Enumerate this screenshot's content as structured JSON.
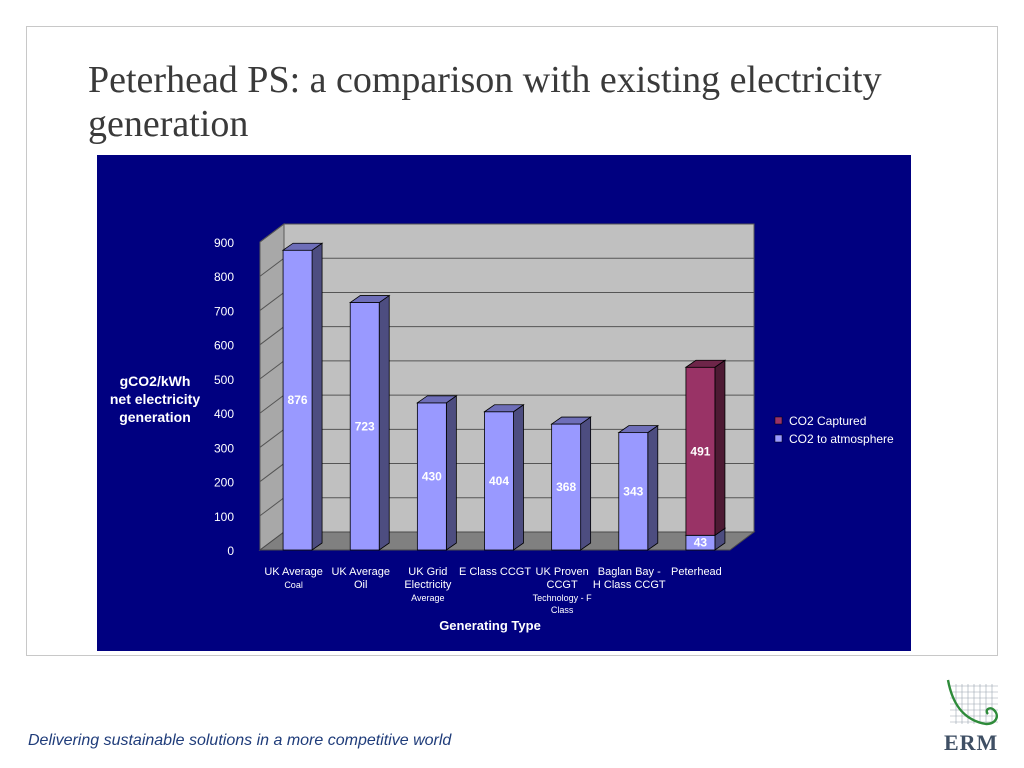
{
  "slide": {
    "title": "Peterhead PS: a comparison with existing electricity generation",
    "footer": "Delivering sustainable solutions in a more competitive world",
    "logo_text": "ERM"
  },
  "colors": {
    "panel_bg": "#000080",
    "plot_bg": "#c0c0c0",
    "floor": "#808080",
    "atmosphere": "#9999ff",
    "captured": "#993366"
  },
  "chart_data": {
    "type": "bar",
    "stacked": true,
    "three_d": true,
    "categories": [
      {
        "main": "UK Average",
        "sub": "Coal"
      },
      {
        "main": "UK Average Oil",
        "sub": ""
      },
      {
        "main": "UK Grid Electricity",
        "sub": "Average"
      },
      {
        "main": "E Class CCGT",
        "sub": ""
      },
      {
        "main": "UK Proven CCGT",
        "sub": "Technology - F Class"
      },
      {
        "main": "Baglan Bay - H Class CCGT",
        "sub": ""
      },
      {
        "main": "Peterhead",
        "sub": ""
      }
    ],
    "series": [
      {
        "name": "CO2 to atmosphere",
        "values": [
          876,
          723,
          430,
          404,
          368,
          343,
          43
        ]
      },
      {
        "name": "CO2 Captured",
        "values": [
          0,
          0,
          0,
          0,
          0,
          0,
          491
        ]
      }
    ],
    "ylabel": "gCO2/kWh net electricity generation",
    "xlabel": "Generating Type",
    "ylim": [
      0,
      900
    ],
    "yticks": [
      0,
      100,
      200,
      300,
      400,
      500,
      600,
      700,
      800,
      900
    ],
    "grid": true,
    "legend": "right",
    "legend_order": [
      "CO2 Captured",
      "CO2 to atmosphere"
    ]
  }
}
